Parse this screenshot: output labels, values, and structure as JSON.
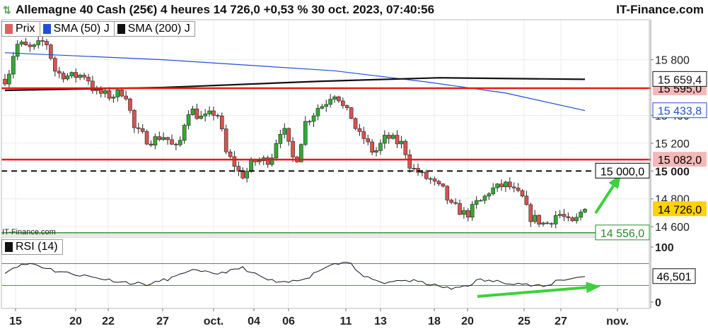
{
  "header": {
    "title": "Allemagne 40 Cash (25€) 4 heures 14 726,0 +0,53 % 30 oct. 2023, 07:40:56",
    "brand": "IT-Finance.com"
  },
  "watermark": "IT-Finance.com",
  "legend": [
    {
      "label": "Prix",
      "color": "#e06060"
    },
    {
      "label": "SMA (50) J",
      "color": "#1f4fd6"
    },
    {
      "label": "SMA (200) J",
      "color": "#111111"
    }
  ],
  "rsi_legend": {
    "label": "RSI (14)",
    "color": "#111111"
  },
  "colors": {
    "up": "#33aa33",
    "down": "#d9534f",
    "sma50": "#1f4fd6",
    "sma200": "#111111",
    "resistance": "#e8191b",
    "arrow": "#3bd23b",
    "support": "#2b8a2b",
    "price_tag": "#ffd200"
  },
  "chart_data": [
    {
      "type": "candlestick",
      "title": "Allemagne 40 Cash (25€) 4 heures",
      "x_labels": [
        "15",
        "20",
        "22",
        "27",
        "oct.",
        "04",
        "06",
        "11",
        "13",
        "18",
        "20",
        "25",
        "27",
        "nov."
      ],
      "y_ticks": [
        {
          "value": 15800,
          "label": "15 800"
        },
        {
          "value": 15400,
          "label": "15 400"
        },
        {
          "value": 15200,
          "label": "15 200"
        },
        {
          "value": 15000,
          "label": "15 000"
        },
        {
          "value": 14800,
          "label": "14 800"
        },
        {
          "value": 14600,
          "label": "14 600"
        }
      ],
      "ylim": [
        14540,
        15950
      ],
      "price_path": [
        15660,
        15910,
        15880,
        15930,
        15700,
        15680,
        15690,
        15560,
        15540,
        15570,
        15280,
        15220,
        15250,
        15160,
        15440,
        15380,
        15420,
        15090,
        14970,
        15070,
        15080,
        15300,
        15080,
        15380,
        15470,
        15560,
        15420,
        15250,
        15140,
        15240,
        15200,
        15010,
        14950,
        14880,
        14740,
        14690,
        14780,
        14870,
        14900,
        14830,
        14660,
        14620,
        14690,
        14620,
        14726
      ],
      "sma50": [
        {
          "i": 0,
          "v": 15850
        },
        {
          "i": 12,
          "v": 15800
        },
        {
          "i": 25,
          "v": 15720
        },
        {
          "i": 32,
          "v": 15640
        },
        {
          "i": 38,
          "v": 15560
        },
        {
          "i": 44,
          "v": 15434
        }
      ],
      "sma200": [
        {
          "i": 0,
          "v": 15580
        },
        {
          "i": 12,
          "v": 15600
        },
        {
          "i": 24,
          "v": 15645
        },
        {
          "i": 33,
          "v": 15670
        },
        {
          "i": 44,
          "v": 15659
        }
      ],
      "levels": [
        {
          "name": "resistance-1",
          "value": 15595,
          "label": "15 595,0",
          "style": "solid-red"
        },
        {
          "name": "resistance-2",
          "value": 15082,
          "label": "15 082,0",
          "style": "solid-red"
        },
        {
          "name": "target",
          "value": 15000,
          "label": "15 000,0",
          "style": "dashed-black"
        },
        {
          "name": "support",
          "value": 14556,
          "label": "14 556,0",
          "style": "solid-green"
        }
      ],
      "sma_tags": [
        {
          "value": 15659,
          "label": "15 659,4",
          "series": "sma200"
        },
        {
          "value": 15434,
          "label": "15 433,8",
          "series": "sma50"
        }
      ],
      "last_price": {
        "value": 14726,
        "label": "14 726,0"
      }
    },
    {
      "type": "line",
      "title": "RSI (14)",
      "y_ticks": [
        {
          "value": 100,
          "label": "100"
        },
        {
          "value": 0,
          "label": "0"
        }
      ],
      "ylim": [
        0,
        100
      ],
      "bands": [
        70,
        30
      ],
      "values": [
        55,
        66,
        70,
        63,
        56,
        52,
        48,
        44,
        40,
        36,
        34,
        32,
        40,
        46,
        58,
        54,
        52,
        56,
        62,
        50,
        40,
        34,
        38,
        46,
        60,
        70,
        74,
        50,
        38,
        34,
        40,
        38,
        34,
        28,
        24,
        30,
        40,
        38,
        36,
        34,
        30,
        28,
        40,
        43,
        46.5
      ],
      "last_value": {
        "value": 46.501,
        "label": "46,501"
      }
    }
  ]
}
